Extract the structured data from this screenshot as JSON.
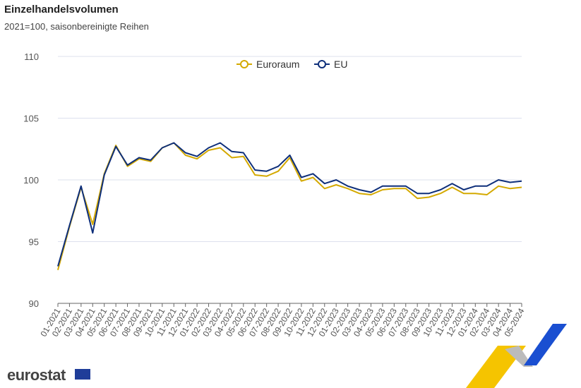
{
  "chart_data": {
    "type": "line",
    "title": "Einzelhandelsvolumen",
    "subtitle": "2021=100, saisonbereinigte Reihen",
    "x": [
      "01-2021",
      "02-2021",
      "03-2021",
      "04-2021",
      "05-2021",
      "06-2021",
      "07-2021",
      "08-2021",
      "09-2021",
      "10-2021",
      "11-2021",
      "12-2021",
      "01-2022",
      "02-2022",
      "03-2022",
      "04-2022",
      "05-2022",
      "06-2022",
      "07-2022",
      "08-2022",
      "09-2022",
      "10-2022",
      "11-2022",
      "12-2022",
      "01-2023",
      "02-2023",
      "03-2023",
      "04-2023",
      "05-2023",
      "06-2023",
      "07-2023",
      "08-2023",
      "09-2023",
      "10-2023",
      "11-2023",
      "12-2023",
      "01-2024",
      "02-2024",
      "03-2024",
      "04-2024",
      "05-2024"
    ],
    "series": [
      {
        "name": "Euroraum",
        "color": "#d4a900",
        "values": [
          92.7,
          96.2,
          99.4,
          96.4,
          100.5,
          102.8,
          101.1,
          101.7,
          101.5,
          102.6,
          103.0,
          102.0,
          101.7,
          102.4,
          102.6,
          101.8,
          101.9,
          100.4,
          100.3,
          100.7,
          101.8,
          99.9,
          100.2,
          99.3,
          99.6,
          99.3,
          98.9,
          98.8,
          99.2,
          99.3,
          99.3,
          98.5,
          98.6,
          98.9,
          99.4,
          98.9,
          98.9,
          98.8,
          99.5,
          99.3,
          99.4
        ]
      },
      {
        "name": "EU",
        "color": "#0e2f7a",
        "values": [
          93.0,
          96.3,
          99.5,
          95.7,
          100.4,
          102.7,
          101.2,
          101.8,
          101.6,
          102.6,
          103.0,
          102.2,
          101.9,
          102.6,
          103.0,
          102.3,
          102.2,
          100.8,
          100.7,
          101.1,
          102.0,
          100.2,
          100.5,
          99.7,
          100.0,
          99.5,
          99.2,
          99.0,
          99.5,
          99.5,
          99.5,
          98.9,
          98.9,
          99.2,
          99.7,
          99.2,
          99.5,
          99.5,
          100.0,
          99.8,
          99.9
        ]
      }
    ],
    "ylim": [
      90,
      110
    ],
    "yticks": [
      90,
      95,
      100,
      105,
      110
    ],
    "grid": true,
    "legend": "top-center"
  },
  "branding": {
    "logo": "eurostat"
  }
}
